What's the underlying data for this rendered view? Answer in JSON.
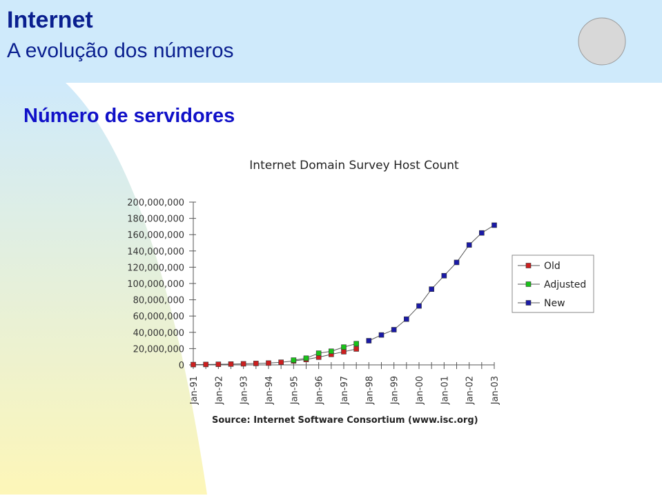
{
  "header": {
    "title": "Internet",
    "subtitle": "A evolução dos números",
    "heading": "Número de servidores"
  },
  "chart_data": {
    "type": "line",
    "title": "Internet Domain Survey Host Count",
    "source": "Source: Internet Software Consortium (www.isc.org)",
    "categories": [
      "Jan-91",
      null,
      "Jan-92",
      null,
      "Jan-93",
      null,
      "Jan-94",
      null,
      "Jan-95",
      null,
      "Jan-96",
      null,
      "Jan-97",
      null,
      "Jan-98",
      null,
      "Jan-99",
      null,
      "Jan-00",
      null,
      "Jan-01",
      null,
      "Jan-02",
      null,
      "Jan-03"
    ],
    "series": [
      {
        "name": "Old",
        "color": "#cc1f1f",
        "values": [
          376000,
          535000,
          727000,
          992000,
          1313000,
          1776000,
          2217000,
          3212000,
          4852000,
          6642000,
          9472000,
          12881000,
          16146000,
          19540000,
          null,
          null,
          null,
          null,
          null,
          null,
          null,
          null,
          null,
          null,
          null
        ]
      },
      {
        "name": "Adjusted",
        "color": "#19c219",
        "values": [
          null,
          null,
          null,
          null,
          null,
          null,
          null,
          null,
          5846000,
          8200000,
          14352000,
          16729000,
          21819000,
          26053000,
          null,
          null,
          null,
          null,
          null,
          null,
          null,
          null,
          null,
          null,
          null
        ]
      },
      {
        "name": "New",
        "color": "#1a1aa6",
        "values": [
          null,
          null,
          null,
          null,
          null,
          null,
          null,
          null,
          null,
          null,
          null,
          null,
          null,
          null,
          29670000,
          36739000,
          43230000,
          56218000,
          72398000,
          93047000,
          109574000,
          125888000,
          147344000,
          162128000,
          171638000
        ]
      }
    ],
    "ylim": [
      0,
      200000000
    ],
    "yticks": [
      0,
      {
        "value": 20000000,
        "label": "20,000,000"
      },
      {
        "value": 40000000,
        "label": "40,000,000"
      },
      {
        "value": 60000000,
        "label": "60,000,000"
      },
      {
        "value": 80000000,
        "label": "80,000,000"
      },
      {
        "value": 100000000,
        "label": "100,000,000"
      },
      {
        "value": 120000000,
        "label": "120,000,000"
      },
      {
        "value": 140000000,
        "label": "140,000,000"
      },
      {
        "value": 160000000,
        "label": "160,000,000"
      },
      {
        "value": 180000000,
        "label": "180,000,000"
      },
      {
        "value": 200000000,
        "label": "200,000,000"
      }
    ],
    "legend": "right"
  }
}
